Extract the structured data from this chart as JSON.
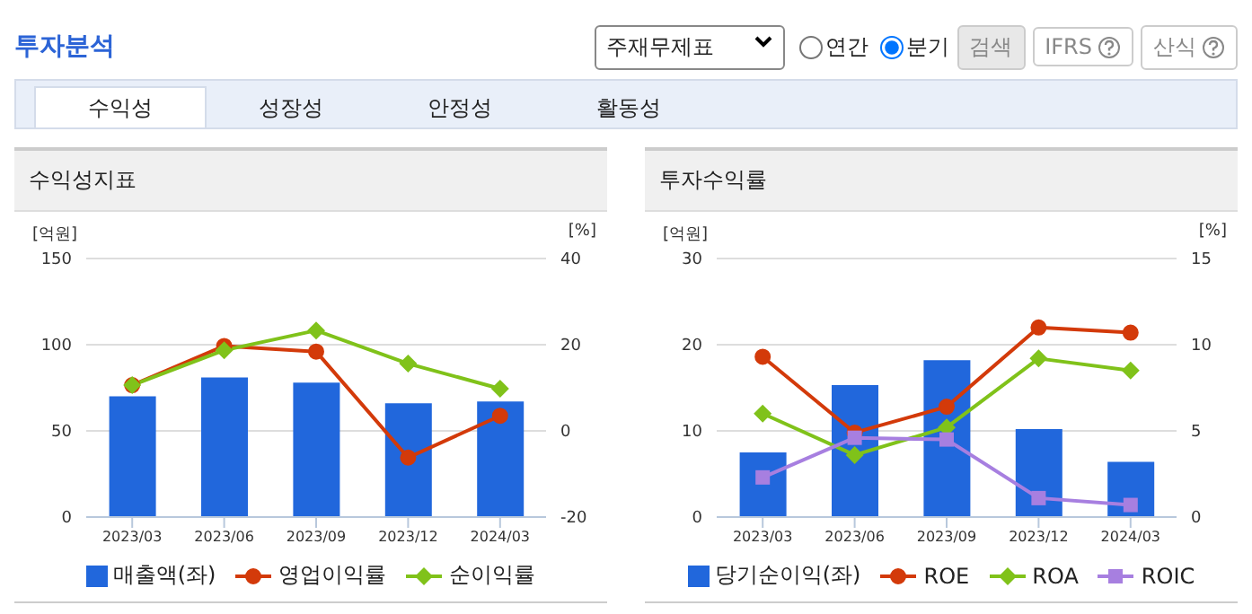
{
  "chart_data": [
    {
      "type": "other",
      "title": "투자분석",
      "annotations": [
        "주재무제표",
        "연간",
        "분기",
        "검색",
        "IFRS",
        "산식",
        "수익성",
        "성장성",
        "안정성",
        "활동성"
      ]
    },
    {
      "type": "bar",
      "title": "수익성지표",
      "ylabel": "[억원]",
      "y2label": "[%]",
      "categories": [
        "2023/03",
        "2023/06",
        "2023/09",
        "2023/12",
        "2024/03"
      ],
      "ylim": [
        0,
        150
      ],
      "yticks": [
        0,
        50,
        100,
        150
      ],
      "y2lim": [
        -20,
        40
      ],
      "y2ticks": [
        -20,
        0,
        20,
        40
      ],
      "grid": "y",
      "legend": "bottom",
      "series": [
        {
          "name": "매출액(좌)",
          "type": "bar",
          "color": "#2167dc",
          "values": [
            70,
            81,
            78,
            66,
            67
          ]
        },
        {
          "name": "영업이익률",
          "type": "line",
          "axis": "y2",
          "marker": "circle",
          "color": "#d33a0a",
          "values": [
            10.6,
            19.7,
            18.4,
            -6.2,
            3.5
          ]
        },
        {
          "name": "순이익률",
          "type": "line",
          "axis": "y2",
          "marker": "diamond",
          "color": "#80c21a",
          "values": [
            10.6,
            18.7,
            23.3,
            15.6,
            9.8
          ]
        }
      ]
    },
    {
      "type": "bar",
      "title": "투자수익률",
      "ylabel": "[억원]",
      "y2label": "[%]",
      "categories": [
        "2023/03",
        "2023/06",
        "2023/09",
        "2023/12",
        "2024/03"
      ],
      "ylim": [
        0,
        30
      ],
      "yticks": [
        0,
        10,
        20,
        30
      ],
      "y2lim": [
        0,
        15
      ],
      "y2ticks": [
        0,
        5,
        10,
        15
      ],
      "grid": "y",
      "legend": "bottom",
      "series": [
        {
          "name": "당기순이익(좌)",
          "type": "bar",
          "color": "#2167dc",
          "values": [
            7.5,
            15.3,
            18.2,
            10.2,
            6.4
          ]
        },
        {
          "name": "ROE",
          "type": "line",
          "axis": "y2",
          "marker": "circle",
          "color": "#d33a0a",
          "values": [
            9.3,
            4.9,
            6.4,
            11.0,
            10.7
          ]
        },
        {
          "name": "ROA",
          "type": "line",
          "axis": "y2",
          "marker": "diamond",
          "color": "#80c21a",
          "values": [
            6.0,
            3.6,
            5.2,
            9.2,
            8.5
          ]
        },
        {
          "name": "ROIC",
          "type": "line",
          "axis": "y2",
          "marker": "square",
          "color": "#a77fe0",
          "values": [
            2.3,
            4.6,
            4.5,
            1.1,
            0.7
          ]
        }
      ]
    }
  ]
}
